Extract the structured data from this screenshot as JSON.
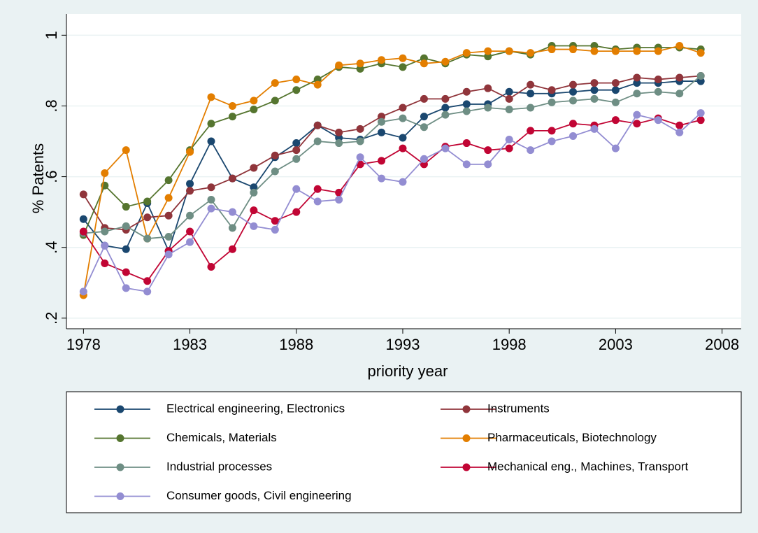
{
  "chart_data": {
    "type": "line",
    "x_label": "priority year",
    "y_label": "% Patents",
    "x": [
      1978,
      1979,
      1980,
      1981,
      1982,
      1983,
      1984,
      1985,
      1986,
      1987,
      1988,
      1989,
      1990,
      1991,
      1992,
      1993,
      1994,
      1995,
      1996,
      1997,
      1998,
      1999,
      2000,
      2001,
      2002,
      2003,
      2004,
      2005,
      2006,
      2007
    ],
    "xlim": [
      1977.2,
      2008.9
    ],
    "xticks": [
      1978,
      1983,
      1988,
      1993,
      1998,
      2003,
      2008
    ],
    "ylim": [
      0.17,
      1.06
    ],
    "yticks": [
      {
        "value": 0.2,
        "label": ".2"
      },
      {
        "value": 0.4,
        "label": ".4"
      },
      {
        "value": 0.6,
        "label": ".6"
      },
      {
        "value": 0.8,
        "label": ".8"
      },
      1
    ],
    "grid": true,
    "series": [
      {
        "name": "Electrical engineering, Electronics",
        "color": "#1a476f",
        "values": [
          0.48,
          0.405,
          0.395,
          0.525,
          0.39,
          0.58,
          0.7,
          0.595,
          0.57,
          0.655,
          0.695,
          0.745,
          0.71,
          0.705,
          0.725,
          0.71,
          0.77,
          0.795,
          0.805,
          0.805,
          0.84,
          0.835,
          0.835,
          0.84,
          0.845,
          0.845,
          0.865,
          0.865,
          0.87,
          0.87
        ]
      },
      {
        "name": "Instruments",
        "color": "#90353b",
        "values": [
          0.55,
          0.455,
          0.45,
          0.485,
          0.49,
          0.56,
          0.57,
          0.595,
          0.625,
          0.66,
          0.675,
          0.745,
          0.725,
          0.735,
          0.77,
          0.795,
          0.82,
          0.82,
          0.84,
          0.85,
          0.82,
          0.86,
          0.845,
          0.86,
          0.865,
          0.865,
          0.88,
          0.875,
          0.88,
          0.885
        ]
      },
      {
        "name": "Chemicals, Materials",
        "color": "#55752f",
        "values": [
          0.435,
          0.575,
          0.515,
          0.53,
          0.59,
          0.675,
          0.75,
          0.77,
          0.79,
          0.815,
          0.845,
          0.875,
          0.91,
          0.905,
          0.92,
          0.91,
          0.935,
          0.92,
          0.945,
          0.94,
          0.955,
          0.945,
          0.97,
          0.97,
          0.97,
          0.96,
          0.965,
          0.965,
          0.965,
          0.96
        ]
      },
      {
        "name": "Pharmaceuticals, Biotechnology",
        "color": "#e37e00",
        "values": [
          0.265,
          0.61,
          0.675,
          0.425,
          0.54,
          0.67,
          0.825,
          0.8,
          0.815,
          0.865,
          0.875,
          0.86,
          0.915,
          0.92,
          0.93,
          0.935,
          0.92,
          0.925,
          0.95,
          0.955,
          0.955,
          0.95,
          0.96,
          0.96,
          0.955,
          0.955,
          0.955,
          0.955,
          0.97,
          0.95
        ]
      },
      {
        "name": "Industrial processes",
        "color": "#6e8e84",
        "values": [
          0.44,
          0.445,
          0.46,
          0.425,
          0.43,
          0.49,
          0.535,
          0.455,
          0.555,
          0.615,
          0.65,
          0.7,
          0.695,
          0.7,
          0.755,
          0.765,
          0.74,
          0.775,
          0.785,
          0.795,
          0.79,
          0.795,
          0.81,
          0.815,
          0.82,
          0.81,
          0.835,
          0.84,
          0.835,
          0.885
        ]
      },
      {
        "name": "Mechanical eng., Machines, Transport",
        "color": "#c10534",
        "values": [
          0.445,
          0.355,
          0.33,
          0.305,
          0.39,
          0.445,
          0.345,
          0.395,
          0.505,
          0.475,
          0.5,
          0.565,
          0.555,
          0.635,
          0.645,
          0.68,
          0.635,
          0.685,
          0.695,
          0.675,
          0.68,
          0.73,
          0.73,
          0.75,
          0.745,
          0.76,
          0.75,
          0.765,
          0.745,
          0.76
        ]
      },
      {
        "name": "Consumer goods, Civil engineering",
        "color": "#938dd2",
        "values": [
          0.275,
          0.405,
          0.285,
          0.275,
          0.38,
          0.415,
          0.51,
          0.5,
          0.46,
          0.45,
          0.565,
          0.53,
          0.535,
          0.655,
          0.595,
          0.585,
          0.65,
          0.68,
          0.635,
          0.635,
          0.705,
          0.675,
          0.7,
          0.715,
          0.735,
          0.68,
          0.775,
          0.76,
          0.725,
          0.78
        ]
      }
    ]
  }
}
